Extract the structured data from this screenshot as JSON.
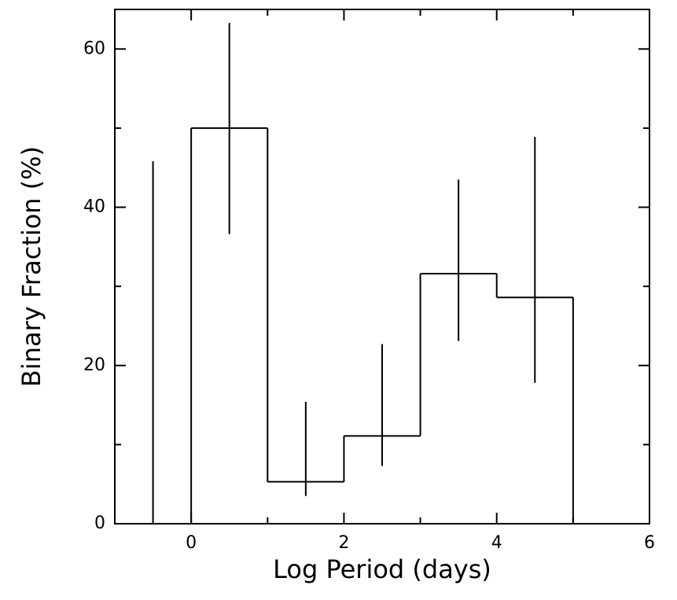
{
  "chart_data": {
    "type": "histogram",
    "xlabel": "Log Period (days)",
    "ylabel": "Binary Fraction (%)",
    "bins": [
      -1,
      0,
      1,
      2,
      3,
      4,
      5
    ],
    "values": [
      0,
      50,
      5.3,
      11.1,
      31.6,
      28.6
    ],
    "error_lower": [
      0,
      36.6,
      3.5,
      7.3,
      23.1,
      17.8
    ],
    "error_upper": [
      45.8,
      63.3,
      15.4,
      22.7,
      43.5,
      48.9
    ],
    "xlim": [
      -1,
      6
    ],
    "xticks": [
      0,
      2,
      4,
      6
    ],
    "xminor": [
      -1,
      1,
      3,
      5
    ],
    "ylim": [
      0,
      65
    ],
    "yticks": [
      0,
      20,
      40,
      60
    ],
    "yminor": [
      10,
      30,
      50
    ],
    "color": "#000000"
  }
}
